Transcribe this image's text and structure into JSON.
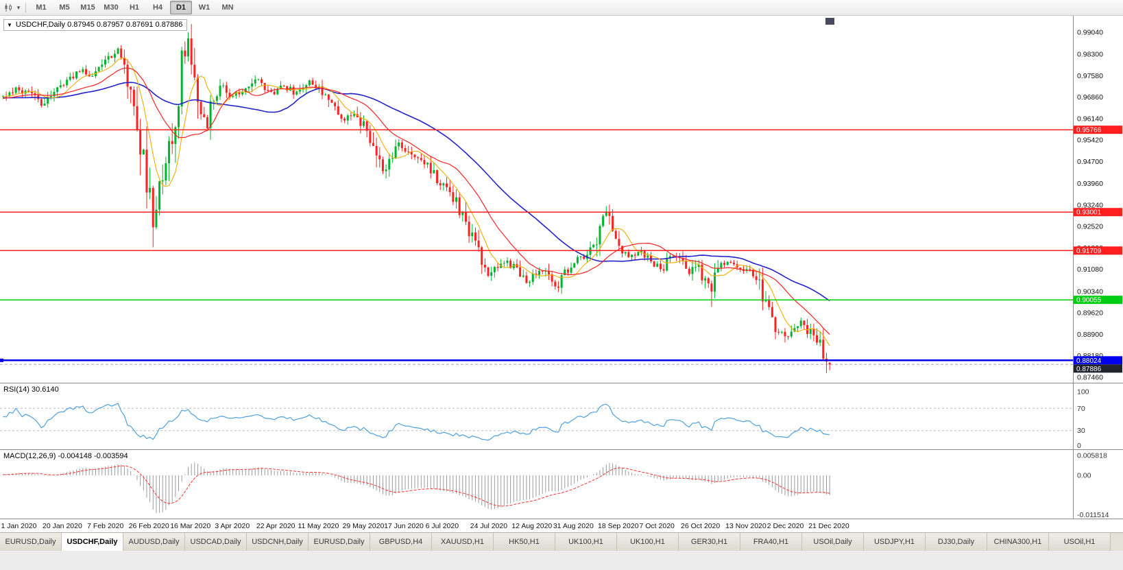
{
  "toolbar": {
    "timeframes": [
      {
        "label": "M1",
        "active": false
      },
      {
        "label": "M5",
        "active": false
      },
      {
        "label": "M15",
        "active": false
      },
      {
        "label": "M30",
        "active": false
      },
      {
        "label": "H1",
        "active": false
      },
      {
        "label": "H4",
        "active": false
      },
      {
        "label": "D1",
        "active": true
      },
      {
        "label": "W1",
        "active": false
      },
      {
        "label": "MN",
        "active": false
      }
    ],
    "icons": {
      "chart_type": "candlestick-chart-icon",
      "chart_type_caret": "chevron-down-icon"
    }
  },
  "chart": {
    "symbol_label": "USDCHF,Daily",
    "title_line": "USDCHF,Daily 0.87945 0.87957 0.87691 0.87886",
    "price_axis_labels": [
      "0.99040",
      "0.98300",
      "0.97580",
      "0.96860",
      "0.96140",
      "0.95420",
      "0.94700",
      "0.93960",
      "0.93240",
      "0.92520",
      "0.91800",
      "0.91080",
      "0.90340",
      "0.89620",
      "0.88900",
      "0.88180",
      "0.87460"
    ],
    "date_axis_labels": [
      "1 Jan 2020",
      "20 Jan 2020",
      "7 Feb 2020",
      "26 Feb 2020",
      "16 Mar 2020",
      "3 Apr 2020",
      "22 Apr 2020",
      "11 May 2020",
      "29 May 2020",
      "17 Jun 2020",
      "6 Jul 2020",
      "24 Jul 2020",
      "12 Aug 2020",
      "31 Aug 2020",
      "18 Sep 2020",
      "7 Oct 2020",
      "26 Oct 2020",
      "13 Nov 2020",
      "2 Dec 2020",
      "21 Dec 2020"
    ],
    "hlines": [
      {
        "price": 0.95766,
        "label": "0.95766",
        "color": "#ff1f1f",
        "width": 1.2
      },
      {
        "price": 0.93001,
        "label": "0.93001",
        "color": "#ff1f1f",
        "width": 1.2
      },
      {
        "price": 0.91709,
        "label": "0.91709",
        "color": "#ff1f1f",
        "width": 1.2
      },
      {
        "price": 0.90055,
        "label": "0.90055",
        "color": "#00cc11",
        "width": 1.5
      },
      {
        "price": 0.88024,
        "label": "0.88024",
        "color": "#0000ee",
        "width": 2.5
      }
    ],
    "current_price": {
      "value": 0.87886,
      "label": "0.87886",
      "tag_bg": "#23232f"
    },
    "colors": {
      "bull": "#00b32c",
      "bear": "#ff2121",
      "ma_fast": "#f0ad00",
      "ma_mid": "#ff2222",
      "ma_slow": "#2222cc",
      "rsi": "#4da0dd",
      "macd_hist": "#9a9a9a",
      "macd_signal": "#ff3030"
    }
  },
  "indicators": {
    "rsi": {
      "label": "RSI(14) 30.6140",
      "period": 14,
      "current": 30.614,
      "axis_labels": [
        "100",
        "70",
        "30",
        "0"
      ],
      "levels": [
        70,
        30
      ]
    },
    "macd": {
      "label": "MACD(12,26,9) -0.004148 -0.003594",
      "fast": 12,
      "slow": 26,
      "signal": 9,
      "current_macd": -0.004148,
      "current_signal": -0.003594,
      "axis_labels": [
        "0.005818",
        "0.00",
        "-0.011514"
      ]
    }
  },
  "chart_data": {
    "type": "candlestick",
    "symbol": "USDCHF",
    "timeframe": "Daily",
    "visible_bars": 260,
    "warmup_bars": 60,
    "price_axis_top": 0.9904,
    "price_axis_bottom": 0.8746,
    "date_tick_indices": [
      0,
      13,
      27,
      40,
      53,
      67,
      80,
      93,
      107,
      120,
      133,
      147,
      160,
      173,
      187,
      200,
      213,
      227,
      240,
      253
    ],
    "close_anchors": [
      [
        -60,
        0.9655
      ],
      [
        -40,
        0.97
      ],
      [
        -20,
        0.9665
      ],
      [
        -10,
        0.9685
      ],
      [
        0,
        0.969
      ],
      [
        4,
        0.9715
      ],
      [
        8,
        0.97
      ],
      [
        12,
        0.9658
      ],
      [
        16,
        0.97
      ],
      [
        20,
        0.9735
      ],
      [
        24,
        0.9775
      ],
      [
        28,
        0.976
      ],
      [
        32,
        0.98
      ],
      [
        36,
        0.984
      ],
      [
        38,
        0.98
      ],
      [
        40,
        0.97
      ],
      [
        43,
        0.953
      ],
      [
        46,
        0.933
      ],
      [
        47,
        0.9255
      ],
      [
        49,
        0.938
      ],
      [
        51,
        0.947
      ],
      [
        54,
        0.962
      ],
      [
        56,
        0.98
      ],
      [
        58,
        0.987
      ],
      [
        60,
        0.976
      ],
      [
        62,
        0.964
      ],
      [
        64,
        0.959
      ],
      [
        66,
        0.968
      ],
      [
        69,
        0.9725
      ],
      [
        72,
        0.969
      ],
      [
        76,
        0.971
      ],
      [
        80,
        0.9745
      ],
      [
        84,
        0.97
      ],
      [
        88,
        0.972
      ],
      [
        92,
        0.97
      ],
      [
        96,
        0.9735
      ],
      [
        100,
        0.9705
      ],
      [
        103,
        0.966
      ],
      [
        107,
        0.9615
      ],
      [
        110,
        0.9635
      ],
      [
        113,
        0.959
      ],
      [
        116,
        0.953
      ],
      [
        119,
        0.944
      ],
      [
        121,
        0.9475
      ],
      [
        124,
        0.9525
      ],
      [
        127,
        0.9505
      ],
      [
        130,
        0.9475
      ],
      [
        133,
        0.9455
      ],
      [
        136,
        0.9405
      ],
      [
        139,
        0.9385
      ],
      [
        142,
        0.933
      ],
      [
        145,
        0.926
      ],
      [
        147,
        0.921
      ],
      [
        149,
        0.916
      ],
      [
        152,
        0.909
      ],
      [
        155,
        0.9115
      ],
      [
        158,
        0.9135
      ],
      [
        161,
        0.9105
      ],
      [
        164,
        0.9065
      ],
      [
        167,
        0.909
      ],
      [
        170,
        0.9105
      ],
      [
        173,
        0.9045
      ],
      [
        176,
        0.9095
      ],
      [
        179,
        0.9135
      ],
      [
        182,
        0.9155
      ],
      [
        185,
        0.9185
      ],
      [
        187,
        0.9245
      ],
      [
        189,
        0.93
      ],
      [
        191,
        0.9235
      ],
      [
        193,
        0.918
      ],
      [
        196,
        0.9155
      ],
      [
        200,
        0.9172
      ],
      [
        203,
        0.9135
      ],
      [
        206,
        0.9105
      ],
      [
        209,
        0.9145
      ],
      [
        212,
        0.9155
      ],
      [
        215,
        0.909
      ],
      [
        218,
        0.913
      ],
      [
        220,
        0.906
      ],
      [
        222,
        0.9015
      ],
      [
        224,
        0.9135
      ],
      [
        227,
        0.9125
      ],
      [
        230,
        0.9115
      ],
      [
        233,
        0.9105
      ],
      [
        236,
        0.9085
      ],
      [
        238,
        0.903
      ],
      [
        240,
        0.8955
      ],
      [
        242,
        0.8915
      ],
      [
        244,
        0.8895
      ],
      [
        246,
        0.8875
      ],
      [
        248,
        0.8905
      ],
      [
        250,
        0.893
      ],
      [
        252,
        0.8905
      ],
      [
        254,
        0.888
      ],
      [
        256,
        0.8855
      ],
      [
        258,
        0.8805
      ],
      [
        259,
        0.87886
      ]
    ],
    "preset_closes": [
      [
        258,
        0.8798
      ]
    ],
    "key_highs": [
      [
        58,
        0.9904
      ],
      [
        189,
        0.932
      ]
    ],
    "key_lows": [
      [
        47,
        0.9182
      ],
      [
        222,
        0.8982
      ],
      [
        258,
        0.876
      ]
    ],
    "last_candle": {
      "o": 0.87945,
      "h": 0.87957,
      "l": 0.87691,
      "c": 0.87886
    },
    "ma_periods": {
      "fast": 8,
      "mid": 20,
      "slow": 45
    }
  },
  "tabs": [
    {
      "label": "EURUSD,Daily",
      "active": false
    },
    {
      "label": "USDCHF,Daily",
      "active": true
    },
    {
      "label": "AUDUSD,Daily",
      "active": false
    },
    {
      "label": "USDCAD,Daily",
      "active": false
    },
    {
      "label": "USDCNH,Daily",
      "active": false
    },
    {
      "label": "EURUSD,Daily",
      "active": false
    },
    {
      "label": "GBPUSD,H4",
      "active": false
    },
    {
      "label": "XAUUSD,H1",
      "active": false
    },
    {
      "label": "HK50,H1",
      "active": false
    },
    {
      "label": "UK100,H1",
      "active": false
    },
    {
      "label": "UK100,H1",
      "active": false
    },
    {
      "label": "GER30,H1",
      "active": false
    },
    {
      "label": "FRA40,H1",
      "active": false
    },
    {
      "label": "USOil,Daily",
      "active": false
    },
    {
      "label": "USDJPY,H1",
      "active": false
    },
    {
      "label": "DJ30,Daily",
      "active": false
    },
    {
      "label": "CHINA300,H1",
      "active": false
    },
    {
      "label": "USOil,H1",
      "active": false
    }
  ]
}
